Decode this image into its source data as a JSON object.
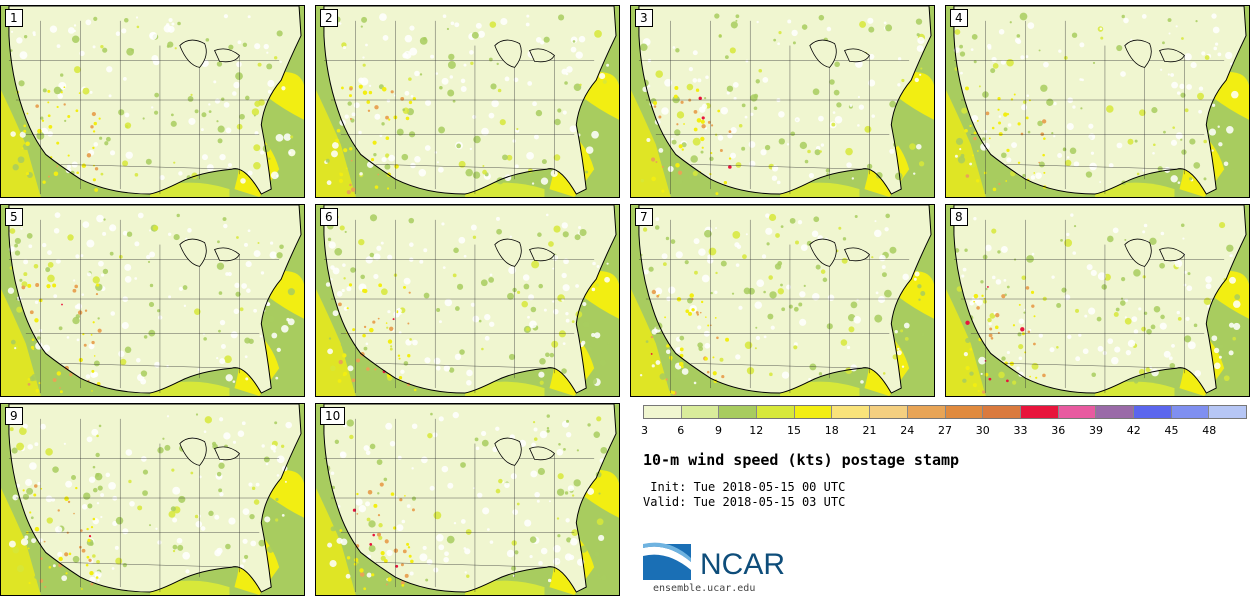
{
  "panels": [
    {
      "label": "1"
    },
    {
      "label": "2"
    },
    {
      "label": "3"
    },
    {
      "label": "4"
    },
    {
      "label": "5"
    },
    {
      "label": "6"
    },
    {
      "label": "7"
    },
    {
      "label": "8"
    },
    {
      "label": "9"
    },
    {
      "label": "10"
    }
  ],
  "colorbar": {
    "colors": [
      "#f0f6d0",
      "#d9ec9b",
      "#a8cc5f",
      "#d7e83a",
      "#f2ee12",
      "#f9e37a",
      "#f4cf80",
      "#e8a456",
      "#e08a3e",
      "#da7a3e",
      "#e8143c",
      "#e85aa0",
      "#9a6aa8",
      "#5b66ee",
      "#7f8ff0",
      "#b6c6f5"
    ],
    "ticks": [
      "3",
      "6",
      "9",
      "12",
      "15",
      "18",
      "21",
      "24",
      "27",
      "30",
      "33",
      "36",
      "39",
      "42",
      "45",
      "48"
    ]
  },
  "title": "10-m wind speed (kts) postage stamp",
  "init_label": " Init: Tue 2018-05-15 00 UTC",
  "valid_label": "Valid: Tue 2018-05-15 03 UTC",
  "logo_text": "NCAR",
  "url": "ensemble.ucar.edu"
}
